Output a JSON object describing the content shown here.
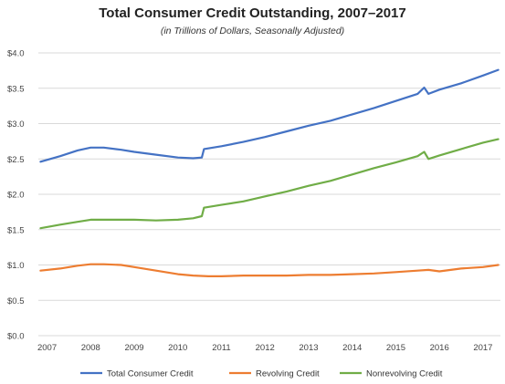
{
  "chart_data": {
    "type": "line",
    "title": "Total Consumer Credit Outstanding, 2007–2017",
    "subtitle": "(in Trillions of Dollars, Seasonally Adjusted)",
    "xlabel": "",
    "ylabel": "",
    "xlim": [
      2006.8,
      2017.4
    ],
    "ylim": [
      0,
      4.0
    ],
    "y_ticks": [
      {
        "value": 0,
        "label": "$0.0"
      },
      {
        "value": 0.5,
        "label": "$0.5"
      },
      {
        "value": 1.0,
        "label": "$1.0"
      },
      {
        "value": 1.5,
        "label": "$1.5"
      },
      {
        "value": 2.0,
        "label": "$2.0"
      },
      {
        "value": 2.5,
        "label": "$2.5"
      },
      {
        "value": 3.0,
        "label": "$3.0"
      },
      {
        "value": 3.5,
        "label": "$3.5"
      },
      {
        "value": 4.0,
        "label": "$4.0"
      }
    ],
    "x_ticks": [
      {
        "value": 2007,
        "label": "2007"
      },
      {
        "value": 2008,
        "label": "2008"
      },
      {
        "value": 2009,
        "label": "2009"
      },
      {
        "value": 2010,
        "label": "2010"
      },
      {
        "value": 2011,
        "label": "2011"
      },
      {
        "value": 2012,
        "label": "2012"
      },
      {
        "value": 2013,
        "label": "2013"
      },
      {
        "value": 2014,
        "label": "2014"
      },
      {
        "value": 2015,
        "label": "2015"
      },
      {
        "value": 2016,
        "label": "2016"
      },
      {
        "value": 2017,
        "label": "2017"
      }
    ],
    "grid": "horizontal",
    "legend_position": "bottom",
    "series": [
      {
        "name": "Total Consumer Credit",
        "color": "#4472c4",
        "x": [
          2006.85,
          2007.3,
          2007.7,
          2008.0,
          2008.3,
          2008.7,
          2009.0,
          2009.5,
          2010.0,
          2010.35,
          2010.55,
          2010.6,
          2011.0,
          2011.5,
          2012.0,
          2012.5,
          2013.0,
          2013.5,
          2014.0,
          2014.5,
          2015.0,
          2015.5,
          2015.65,
          2015.75,
          2016.0,
          2016.5,
          2017.0,
          2017.35
        ],
        "y": [
          2.46,
          2.54,
          2.62,
          2.66,
          2.66,
          2.63,
          2.6,
          2.56,
          2.52,
          2.51,
          2.52,
          2.64,
          2.68,
          2.74,
          2.81,
          2.89,
          2.97,
          3.04,
          3.13,
          3.22,
          3.32,
          3.42,
          3.51,
          3.42,
          3.48,
          3.57,
          3.68,
          3.76
        ]
      },
      {
        "name": "Revolving Credit",
        "color": "#ed7d31",
        "x": [
          2006.85,
          2007.3,
          2007.7,
          2008.0,
          2008.3,
          2008.7,
          2009.0,
          2009.5,
          2010.0,
          2010.35,
          2010.7,
          2011.0,
          2011.5,
          2012.0,
          2012.5,
          2013.0,
          2013.5,
          2014.0,
          2014.5,
          2015.0,
          2015.5,
          2015.75,
          2016.0,
          2016.5,
          2017.0,
          2017.35
        ],
        "y": [
          0.92,
          0.95,
          0.99,
          1.01,
          1.01,
          1.0,
          0.97,
          0.92,
          0.87,
          0.85,
          0.84,
          0.84,
          0.85,
          0.85,
          0.85,
          0.86,
          0.86,
          0.87,
          0.88,
          0.9,
          0.92,
          0.93,
          0.91,
          0.95,
          0.97,
          1.0
        ]
      },
      {
        "name": "Nonrevolving Credit",
        "color": "#70ad47",
        "x": [
          2006.85,
          2007.3,
          2007.7,
          2008.0,
          2008.3,
          2008.7,
          2009.0,
          2009.5,
          2010.0,
          2010.35,
          2010.55,
          2010.6,
          2011.0,
          2011.5,
          2012.0,
          2012.5,
          2013.0,
          2013.5,
          2014.0,
          2014.5,
          2015.0,
          2015.5,
          2015.65,
          2015.75,
          2016.0,
          2016.5,
          2017.0,
          2017.35
        ],
        "y": [
          1.52,
          1.57,
          1.61,
          1.64,
          1.64,
          1.64,
          1.64,
          1.63,
          1.64,
          1.66,
          1.69,
          1.81,
          1.85,
          1.9,
          1.97,
          2.04,
          2.12,
          2.19,
          2.28,
          2.37,
          2.45,
          2.54,
          2.6,
          2.5,
          2.55,
          2.64,
          2.73,
          2.78
        ]
      }
    ]
  }
}
